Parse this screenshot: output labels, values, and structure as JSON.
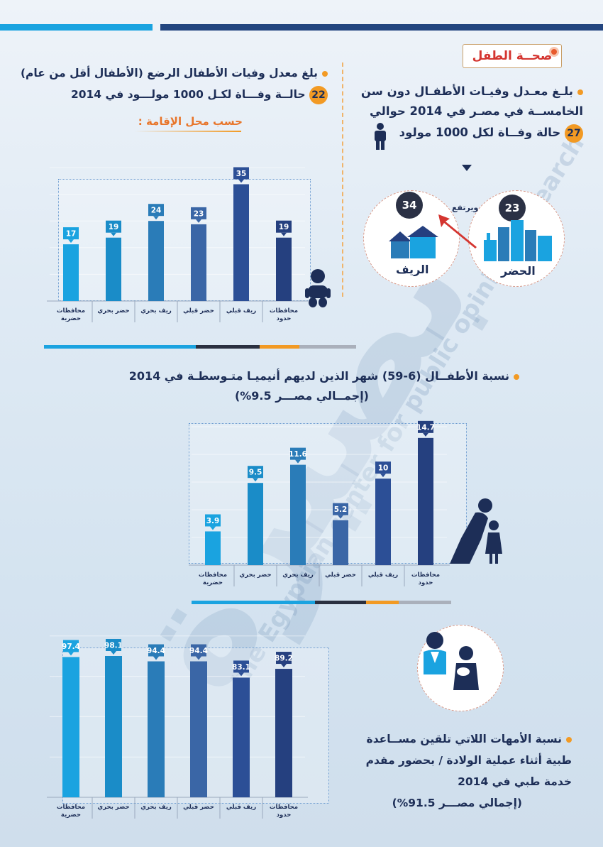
{
  "section_title": "صحــة الطفل",
  "under5": {
    "line1": "بلـغ معـدل وفيـات الأطفـال دون سن",
    "line2": "الخامســة في مصـر في 2014 حوالي",
    "value": "27",
    "line3": "حالة وفــاة لكل 1000 مولود"
  },
  "infant": {
    "line1": "بلغ معدل وفيات الأطفال الرضع (الأطفال أقل من عام)",
    "value": "22",
    "line2": "حالــة وفـــاة لكـل 1000 مولـــود في 2014",
    "residence_heading": "حسب محل الإقامة :"
  },
  "urban_rural": {
    "urban_value": "23",
    "urban_label": "الحضر",
    "rural_value": "34",
    "rural_label": "الريف",
    "rises_label": "ويرتفع"
  },
  "anemia": {
    "title": "نسبة الأطفــال (6-59) شهر الذين لديهم أنيميـا متـوسطـة في 2014",
    "subtitle": "(إجمــالي مصـــر 9.5%)"
  },
  "assistance": {
    "line1": "نسبة الأمهات اللاتي تلقين مســاعدة",
    "line2": "طبية أثناء عملية الولادة / بحضور مقدم",
    "line3": "خدمة طبي في 2014",
    "subtitle": "(إجمالي مصـــر 91.5%)"
  },
  "watermark": {
    "brand": "بصيرة",
    "line_en": "the Egyptian center for public opinion research"
  },
  "colors": {
    "orange": "#f29a24",
    "navy": "#1d2e57",
    "red": "#d43530",
    "bar_colors": [
      "#1aa3e0",
      "#1a8cc8",
      "#2a7cb8",
      "#3a66a6",
      "#2c4f96",
      "#25407f"
    ]
  },
  "chart_data": [
    {
      "type": "bar",
      "categories": [
        "محافظات حضرية",
        "حضر بحري",
        "ريف بحري",
        "حضر قبلي",
        "ريف قبلي",
        "محافظات حدود"
      ],
      "values": [
        17,
        19,
        24,
        23,
        35,
        19
      ],
      "labels": [
        "17",
        "19",
        "24",
        "23",
        "35",
        "19"
      ],
      "ylim": [
        0,
        40
      ]
    },
    {
      "type": "bar",
      "categories": [
        "محافظات حضرية",
        "حضر بحري",
        "ريف بحري",
        "حضر قبلي",
        "ريف قبلي",
        "محافظات حدود"
      ],
      "values": [
        3.9,
        9.5,
        11.6,
        5.2,
        10,
        14.7
      ],
      "labels": [
        "3.9",
        "9.5",
        "11.6",
        "5.2",
        "10",
        "14.7"
      ],
      "ylim": [
        0,
        16
      ]
    },
    {
      "type": "bar",
      "categories": [
        "محافظات حضرية",
        "حضر بحري",
        "ريف بحري",
        "حضر قبلي",
        "ريف قبلي",
        "محافظات حدود"
      ],
      "values": [
        97.4,
        98.1,
        94.4,
        94.4,
        83.1,
        89.2
      ],
      "labels": [
        "97.4",
        "98.1",
        "94.4",
        "94.4",
        "83.1",
        "89.2"
      ],
      "ylim": [
        0,
        140
      ]
    }
  ]
}
